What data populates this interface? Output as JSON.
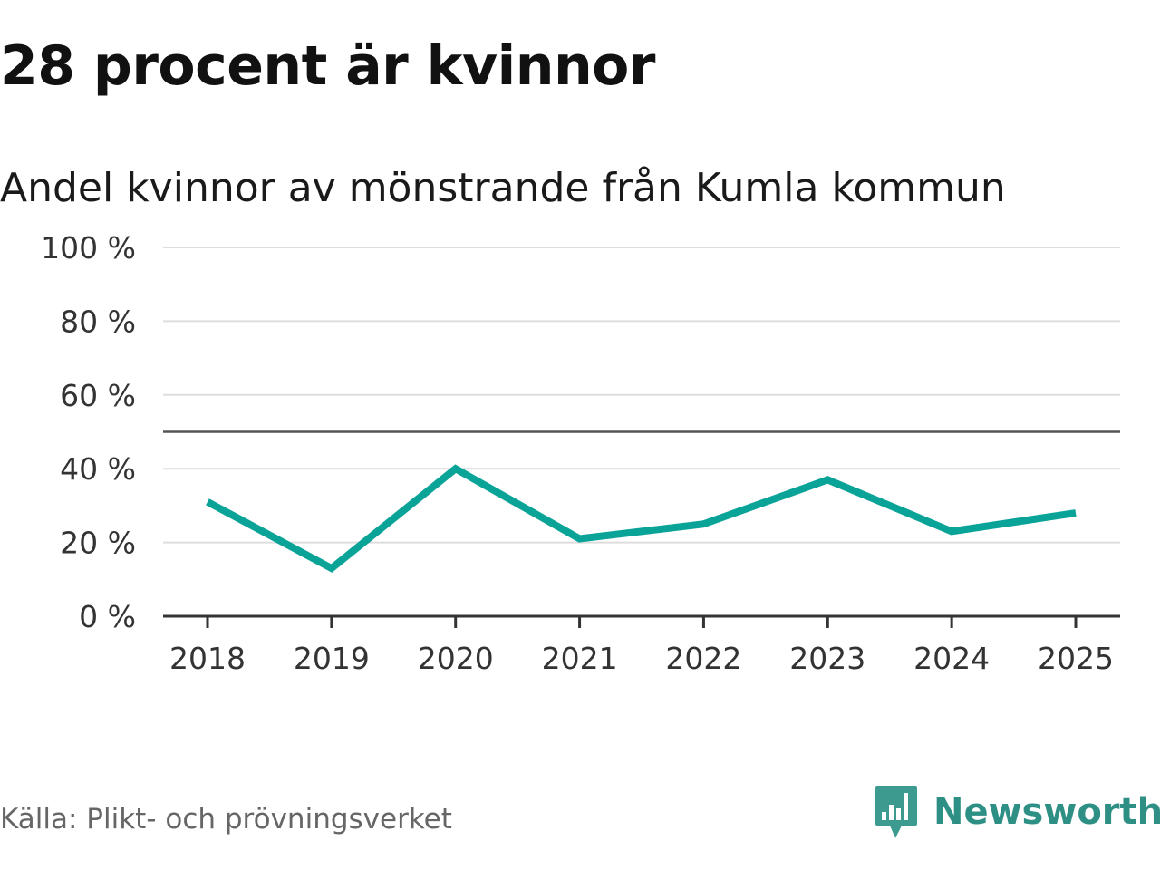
{
  "header": {
    "title": "28 procent är kvinnor",
    "subtitle": "Andel kvinnor av mönstrande från Kumla kommun"
  },
  "footer": {
    "source": "Källa: Plikt- och prövningsverket",
    "brand": "Newsworthy",
    "brand_icon": "newsworthy-logo-icon"
  },
  "colors": {
    "line": "#0aa398",
    "grid": "#dddddd",
    "axis": "#333333",
    "reference_line": "#555555",
    "brand": "#2e8f85"
  },
  "chart_data": {
    "type": "line",
    "title": "Andel kvinnor av mönstrande från Kumla kommun",
    "xlabel": "",
    "ylabel": "",
    "categories": [
      "2018",
      "2019",
      "2020",
      "2021",
      "2022",
      "2023",
      "2024",
      "2025"
    ],
    "series": [
      {
        "values": [
          31,
          13,
          40,
          21,
          25,
          37,
          23,
          28
        ]
      }
    ],
    "ylim": [
      0,
      100
    ],
    "yticks": [
      0,
      20,
      40,
      60,
      80,
      100
    ],
    "ytick_labels": [
      "0 %",
      "20 %",
      "40 %",
      "60 %",
      "80 %",
      "100 %"
    ],
    "reference_line": 50,
    "grid": true,
    "legend": "none"
  }
}
